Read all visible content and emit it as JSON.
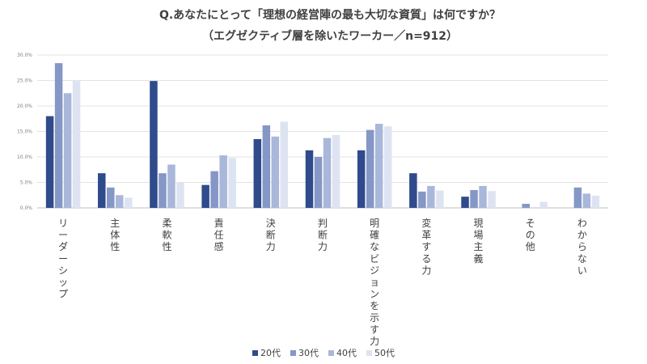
{
  "chart_data": {
    "type": "bar",
    "title": "Q.あなたにとって「理想の経営陣の最も大切な資質」は何ですか？",
    "subtitle": "（エグゼクティブ層を除いたワーカー／n=912）",
    "categories": [
      "リーダーシップ",
      "主体性",
      "柔軟性",
      "責任感",
      "決断力",
      "判断力",
      "明確なビジョンを示す力",
      "変革する力",
      "現場主義",
      "その他",
      "わからない"
    ],
    "series": [
      {
        "name": "20代",
        "color": "#2f4b8c",
        "values": [
          18.0,
          6.8,
          24.9,
          4.5,
          13.5,
          11.3,
          11.3,
          6.8,
          2.2,
          0.0,
          0.0
        ]
      },
      {
        "name": "30代",
        "color": "#8497c6",
        "values": [
          28.4,
          4.0,
          6.8,
          7.2,
          16.2,
          10.0,
          15.3,
          3.2,
          3.5,
          0.8,
          4.0
        ]
      },
      {
        "name": "40代",
        "color": "#a9b7da",
        "values": [
          22.5,
          2.5,
          8.5,
          10.3,
          14.0,
          13.7,
          16.5,
          4.3,
          4.3,
          0.0,
          2.8
        ]
      },
      {
        "name": "50代",
        "color": "#dde3f1",
        "values": [
          24.9,
          2.0,
          5.0,
          9.8,
          16.9,
          14.3,
          16.0,
          3.4,
          3.3,
          1.2,
          2.4
        ]
      }
    ],
    "yticks": [
      "0.0%",
      "5.0%",
      "10.0%",
      "15.0%",
      "20.0%",
      "25.0%",
      "30.0%"
    ],
    "ylim": [
      0,
      30
    ],
    "grid": true,
    "legend_position": "bottom"
  }
}
